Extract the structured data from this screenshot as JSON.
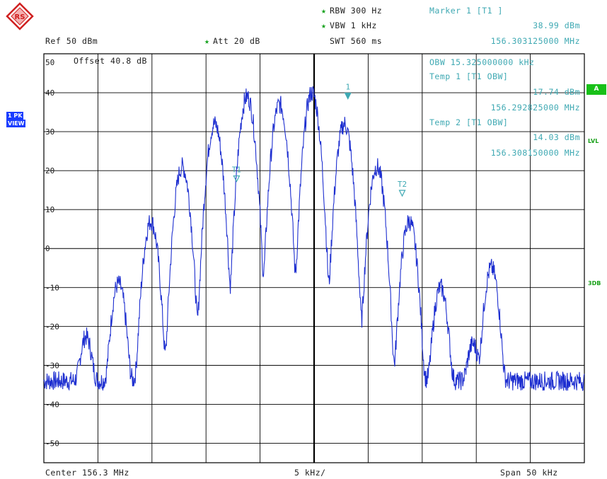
{
  "header": {
    "rbw": "RBW 300 Hz",
    "vbw": "VBW 1 kHz",
    "swt": "SWT 560 ms",
    "ref": "Ref  50 dBm",
    "att": "Att  20 dB",
    "star": "★",
    "marker_title": "Marker 1 [T1 ]",
    "marker_level": "38.99 dBm",
    "marker_freq": "156.303125000 MHz"
  },
  "overlay": {
    "offset": "Offset  40.8 dB",
    "obw": "OBW 15.325000000 kHz",
    "temp1_title": "Temp 1  [T1 OBW]",
    "temp1_level": "17.74 dBm",
    "temp1_freq": "156.292825000 MHz",
    "temp2_title": "Temp 2  [T1 OBW]",
    "temp2_level": "14.03 dBm",
    "temp2_freq": "156.308150000 MHz"
  },
  "footer": {
    "center": "Center 156.3 MHz",
    "div": "5 kHz/",
    "span": "Span 50 kHz"
  },
  "side": {
    "tag1": "1 PK",
    "tag2": "VIEW",
    "a_box": "A",
    "lvl": "LVL",
    "db3": "3DB"
  },
  "colors": {
    "trace": "#1e2fd0",
    "marker": "#3fa9b3",
    "grid": "#000000",
    "accent": "#18c018"
  },
  "chart_data": {
    "type": "line",
    "title": "",
    "x_center_mhz": 156.3,
    "x_span_khz": 50,
    "x_div_khz": 5,
    "ylim": [
      -55,
      50
    ],
    "yticks": [
      50,
      40,
      30,
      20,
      10,
      0,
      -10,
      -20,
      -30,
      -40,
      -50
    ],
    "ytick_labels": [
      "50",
      "40",
      "30",
      "20",
      "10",
      "0",
      "-10",
      "-20",
      "-30",
      "-40",
      "-50"
    ],
    "grid": true,
    "noise_floor_dbm": -34,
    "peaks": [
      {
        "offset_khz": -21.1,
        "level_dbm": -23
      },
      {
        "offset_khz": -18.1,
        "level_dbm": -9
      },
      {
        "offset_khz": -15.1,
        "level_dbm": 7
      },
      {
        "offset_khz": -12.2,
        "level_dbm": 21
      },
      {
        "offset_khz": -9.2,
        "level_dbm": 32
      },
      {
        "offset_khz": -6.2,
        "level_dbm": 39
      },
      {
        "offset_khz": -3.2,
        "level_dbm": 37
      },
      {
        "offset_khz": -0.2,
        "level_dbm": 40
      },
      {
        "offset_khz": 2.8,
        "level_dbm": 32
      },
      {
        "offset_khz": 5.8,
        "level_dbm": 21
      },
      {
        "offset_khz": 8.8,
        "level_dbm": 7
      },
      {
        "offset_khz": 11.7,
        "level_dbm": -10
      },
      {
        "offset_khz": 14.7,
        "level_dbm": -25
      },
      {
        "offset_khz": 16.4,
        "level_dbm": -5
      }
    ],
    "markers": [
      {
        "label": "1",
        "offset_khz": 3.125,
        "level_dbm": 38.99
      },
      {
        "label": "T1",
        "offset_khz": -7.175,
        "level_dbm": 17.74
      },
      {
        "label": "T2",
        "offset_khz": 8.15,
        "level_dbm": 14.03
      }
    ]
  }
}
